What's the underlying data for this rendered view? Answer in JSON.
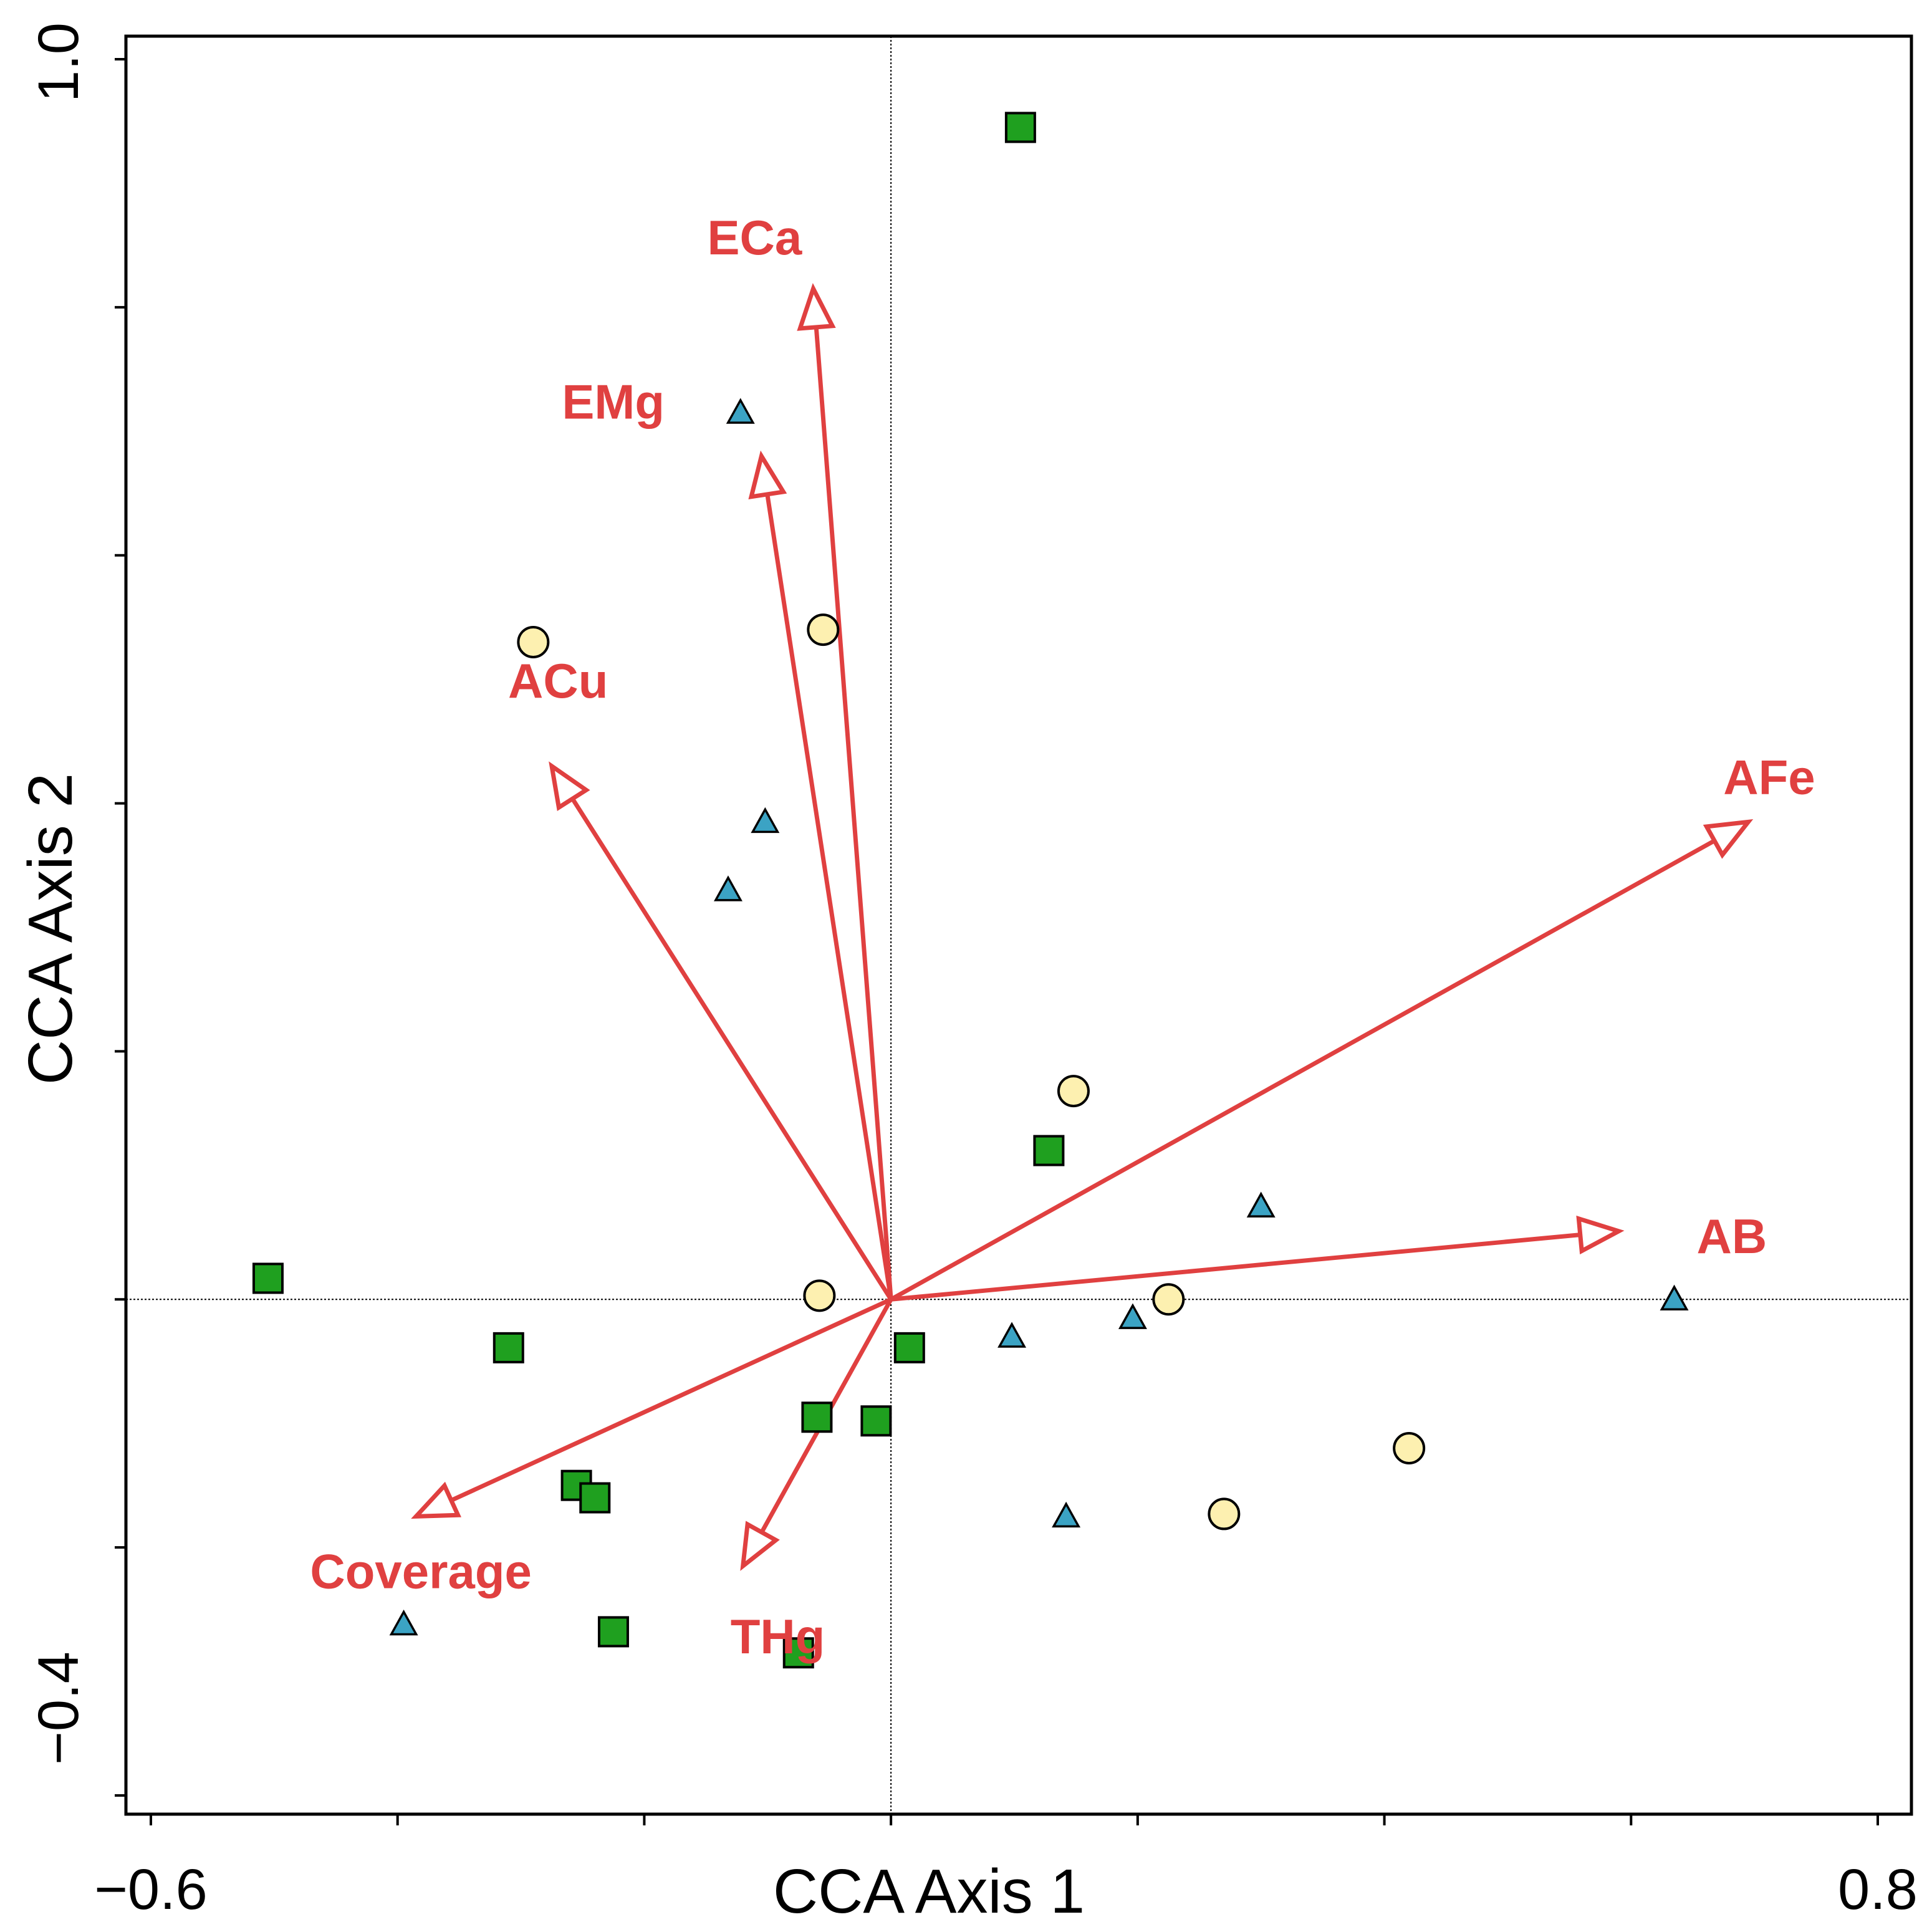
{
  "chart_data": {
    "type": "scatter",
    "subtype": "ordination-biplot",
    "xlabel": "CCA Axis 1",
    "ylabel": "CCA Axis 2",
    "xlim": [
      -0.6,
      0.8
    ],
    "ylim": [
      -0.4,
      1.0
    ],
    "x_tick_labels": [
      "−0.6",
      "0.8"
    ],
    "y_tick_labels": [
      "−0.4",
      "1.0"
    ],
    "x_minor_ticks": [
      -0.6,
      -0.4,
      -0.2,
      0.0,
      0.2,
      0.4,
      0.6,
      0.8
    ],
    "y_minor_ticks": [
      -0.4,
      -0.2,
      0.0,
      0.2,
      0.4,
      0.6,
      0.8,
      1.0
    ],
    "zero_lines": true,
    "grid": false,
    "colors": {
      "square": "#1fa01f",
      "circle": "#fdf0b0",
      "triangle": "#3ba3c4",
      "vector": "#e04040"
    },
    "series": [
      {
        "marker": "square",
        "points": [
          [
            0.105,
            0.945
          ],
          [
            -0.505,
            0.017
          ],
          [
            -0.31,
            -0.039
          ],
          [
            -0.255,
            -0.15
          ],
          [
            -0.24,
            -0.16
          ],
          [
            -0.06,
            -0.095
          ],
          [
            -0.012,
            -0.098
          ],
          [
            0.015,
            -0.039
          ],
          [
            0.128,
            0.12
          ],
          [
            -0.225,
            -0.268
          ],
          [
            -0.075,
            -0.285
          ]
        ]
      },
      {
        "marker": "circle",
        "points": [
          [
            -0.29,
            0.53
          ],
          [
            -0.055,
            0.54
          ],
          [
            0.148,
            0.168
          ],
          [
            -0.058,
            0.003
          ],
          [
            0.225,
            0.0
          ],
          [
            0.42,
            -0.12
          ],
          [
            0.27,
            -0.173
          ]
        ]
      },
      {
        "marker": "triangle",
        "points": [
          [
            -0.122,
            0.715
          ],
          [
            -0.102,
            0.385
          ],
          [
            -0.132,
            0.33
          ],
          [
            0.3,
            0.075
          ],
          [
            0.098,
            -0.03
          ],
          [
            0.196,
            -0.015
          ],
          [
            0.635,
            0.0
          ],
          [
            0.142,
            -0.175
          ],
          [
            -0.395,
            -0.262
          ]
        ]
      }
    ],
    "vectors": [
      {
        "label": "ECa",
        "x": -0.063,
        "y": 0.815
      },
      {
        "label": "EMg",
        "x": -0.105,
        "y": 0.68
      },
      {
        "label": "ACu",
        "x": -0.275,
        "y": 0.43
      },
      {
        "label": "AFe",
        "x": 0.695,
        "y": 0.385
      },
      {
        "label": "AB",
        "x": 0.59,
        "y": 0.055
      },
      {
        "label": "Coverage",
        "x": -0.385,
        "y": -0.175
      },
      {
        "label": "THg",
        "x": -0.12,
        "y": -0.215
      }
    ]
  }
}
